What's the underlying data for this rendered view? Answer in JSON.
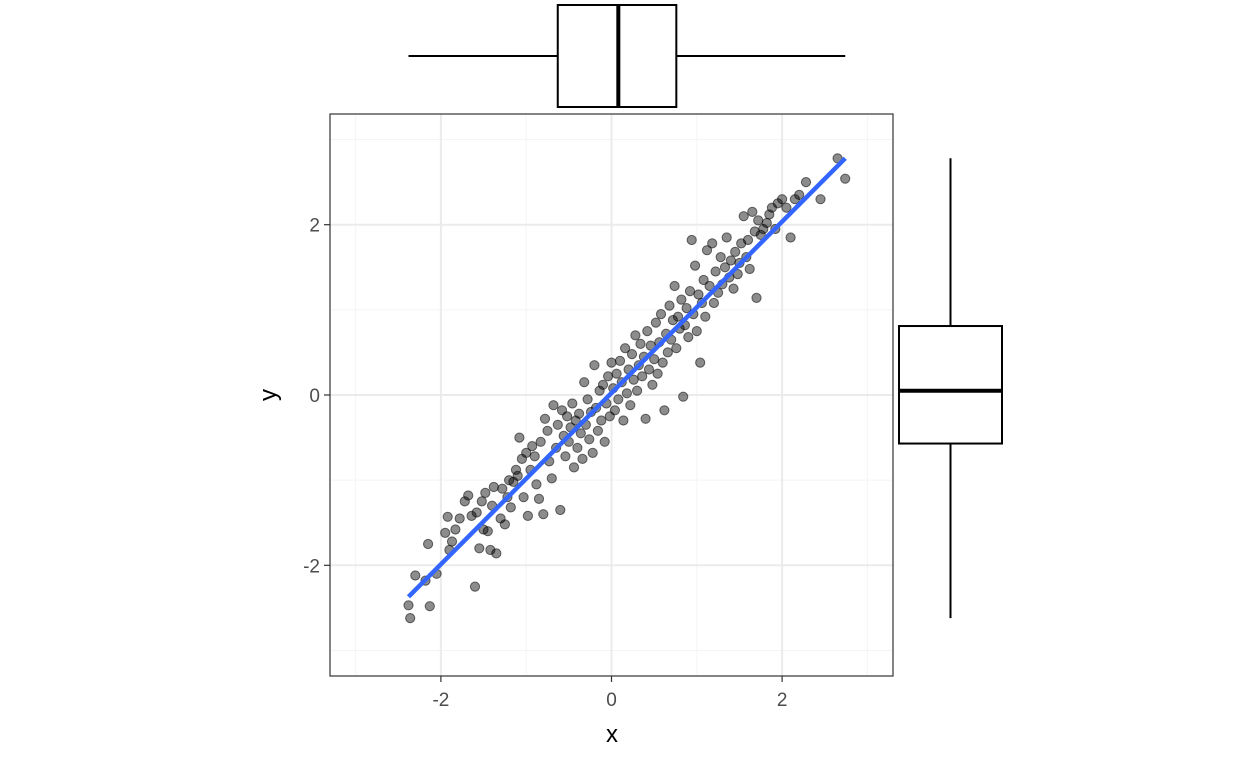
{
  "chart_data": {
    "type": "scatter",
    "title": "",
    "xlabel": "x",
    "ylabel": "y",
    "xlim": [
      -3.3,
      3.3
    ],
    "ylim": [
      -3.3,
      3.3
    ],
    "xticks": [
      -2,
      0,
      2
    ],
    "yticks": [
      -2,
      0,
      2
    ],
    "xtick_labels": [
      "-2",
      "0",
      "2"
    ],
    "ytick_labels": [
      "-2",
      "0",
      "2"
    ],
    "grid": true,
    "theme": "bw",
    "colors": {
      "points": "#000000",
      "point_alpha": 0.45,
      "fit_line": "#3366FF",
      "panel_border": "#333333",
      "grid_major": "#EBEBEB",
      "grid_minor": "#F4F4F4"
    },
    "fit_line": {
      "method": "lm",
      "x": [
        -2.38,
        2.74
      ],
      "y": [
        -2.37,
        2.78
      ]
    },
    "points": [
      [
        -2.38,
        -2.47
      ],
      [
        -2.36,
        -2.62
      ],
      [
        -2.3,
        -2.12
      ],
      [
        -2.18,
        -2.18
      ],
      [
        -2.15,
        -1.75
      ],
      [
        -2.13,
        -2.48
      ],
      [
        -2.05,
        -2.1
      ],
      [
        -1.95,
        -1.62
      ],
      [
        -1.92,
        -1.43
      ],
      [
        -1.9,
        -1.82
      ],
      [
        -1.87,
        -1.72
      ],
      [
        -1.83,
        -1.58
      ],
      [
        -1.78,
        -1.45
      ],
      [
        -1.72,
        -1.25
      ],
      [
        -1.68,
        -1.18
      ],
      [
        -1.64,
        -1.42
      ],
      [
        -1.6,
        -2.25
      ],
      [
        -1.58,
        -1.38
      ],
      [
        -1.55,
        -1.8
      ],
      [
        -1.52,
        -1.25
      ],
      [
        -1.5,
        -1.58
      ],
      [
        -1.48,
        -1.15
      ],
      [
        -1.45,
        -1.6
      ],
      [
        -1.42,
        -1.82
      ],
      [
        -1.4,
        -1.3
      ],
      [
        -1.38,
        -1.08
      ],
      [
        -1.35,
        -1.86
      ],
      [
        -1.3,
        -1.45
      ],
      [
        -1.28,
        -1.1
      ],
      [
        -1.25,
        -1.52
      ],
      [
        -1.22,
        -1.2
      ],
      [
        -1.2,
        -1.0
      ],
      [
        -1.18,
        -1.32
      ],
      [
        -1.15,
        -1.02
      ],
      [
        -1.12,
        -0.88
      ],
      [
        -1.1,
        -0.95
      ],
      [
        -1.08,
        -0.5
      ],
      [
        -1.05,
        -0.75
      ],
      [
        -1.03,
        -1.2
      ],
      [
        -1.0,
        -0.68
      ],
      [
        -0.98,
        -1.42
      ],
      [
        -0.95,
        -0.88
      ],
      [
        -0.93,
        -0.6
      ],
      [
        -0.9,
        -0.72
      ],
      [
        -0.88,
        -1.05
      ],
      [
        -0.85,
        -1.22
      ],
      [
        -0.83,
        -0.55
      ],
      [
        -0.8,
        -1.4
      ],
      [
        -0.78,
        -0.28
      ],
      [
        -0.75,
        -0.42
      ],
      [
        -0.73,
        -0.78
      ],
      [
        -0.7,
        -0.98
      ],
      [
        -0.68,
        -0.12
      ],
      [
        -0.65,
        -0.62
      ],
      [
        -0.63,
        -0.35
      ],
      [
        -0.6,
        -1.35
      ],
      [
        -0.58,
        -0.18
      ],
      [
        -0.56,
        -0.48
      ],
      [
        -0.54,
        -0.72
      ],
      [
        -0.52,
        -0.25
      ],
      [
        -0.5,
        -0.55
      ],
      [
        -0.48,
        -0.38
      ],
      [
        -0.46,
        -0.1
      ],
      [
        -0.44,
        -0.85
      ],
      [
        -0.42,
        -0.3
      ],
      [
        -0.4,
        -0.62
      ],
      [
        -0.38,
        -0.22
      ],
      [
        -0.36,
        -0.45
      ],
      [
        -0.34,
        -0.75
      ],
      [
        -0.32,
        0.15
      ],
      [
        -0.3,
        -0.35
      ],
      [
        -0.28,
        -0.05
      ],
      [
        -0.26,
        -0.52
      ],
      [
        -0.24,
        -0.2
      ],
      [
        -0.22,
        -0.68
      ],
      [
        -0.2,
        0.35
      ],
      [
        -0.18,
        -0.15
      ],
      [
        -0.16,
        -0.42
      ],
      [
        -0.14,
        0.05
      ],
      [
        -0.12,
        -0.3
      ],
      [
        -0.1,
        0.12
      ],
      [
        -0.08,
        -0.55
      ],
      [
        -0.06,
        -0.1
      ],
      [
        -0.04,
        0.22
      ],
      [
        -0.02,
        -0.25
      ],
      [
        0.0,
        0.38
      ],
      [
        0.02,
        0.08
      ],
      [
        0.04,
        -0.18
      ],
      [
        0.06,
        0.25
      ],
      [
        0.08,
        -0.05
      ],
      [
        0.1,
        0.4
      ],
      [
        0.12,
        0.15
      ],
      [
        0.14,
        -0.3
      ],
      [
        0.16,
        0.55
      ],
      [
        0.18,
        0.02
      ],
      [
        0.2,
        0.3
      ],
      [
        0.22,
        -0.12
      ],
      [
        0.24,
        0.48
      ],
      [
        0.26,
        0.18
      ],
      [
        0.28,
        0.7
      ],
      [
        0.3,
        0.05
      ],
      [
        0.32,
        0.35
      ],
      [
        0.34,
        0.6
      ],
      [
        0.36,
        0.22
      ],
      [
        0.38,
        0.45
      ],
      [
        0.4,
        -0.28
      ],
      [
        0.42,
        0.75
      ],
      [
        0.44,
        0.3
      ],
      [
        0.46,
        0.58
      ],
      [
        0.48,
        0.12
      ],
      [
        0.5,
        0.42
      ],
      [
        0.52,
        0.85
      ],
      [
        0.54,
        0.25
      ],
      [
        0.56,
        0.62
      ],
      [
        0.58,
        0.95
      ],
      [
        0.6,
        0.38
      ],
      [
        0.62,
        -0.18
      ],
      [
        0.64,
        0.72
      ],
      [
        0.66,
        0.5
      ],
      [
        0.68,
        1.05
      ],
      [
        0.7,
        0.65
      ],
      [
        0.72,
        0.88
      ],
      [
        0.74,
        1.28
      ],
      [
        0.76,
        0.55
      ],
      [
        0.78,
        0.92
      ],
      [
        0.8,
        0.78
      ],
      [
        0.82,
        1.12
      ],
      [
        0.84,
        -0.02
      ],
      [
        0.86,
        0.82
      ],
      [
        0.88,
        1.02
      ],
      [
        0.9,
        0.68
      ],
      [
        0.92,
        1.22
      ],
      [
        0.94,
        1.82
      ],
      [
        0.96,
        0.95
      ],
      [
        0.98,
        1.52
      ],
      [
        1.0,
        0.75
      ],
      [
        1.02,
        1.18
      ],
      [
        1.04,
        0.38
      ],
      [
        1.06,
        1.08
      ],
      [
        1.08,
        1.35
      ],
      [
        1.1,
        0.92
      ],
      [
        1.12,
        1.7
      ],
      [
        1.15,
        1.28
      ],
      [
        1.18,
        1.78
      ],
      [
        1.2,
        1.08
      ],
      [
        1.22,
        1.45
      ],
      [
        1.25,
        1.2
      ],
      [
        1.28,
        1.62
      ],
      [
        1.3,
        1.3
      ],
      [
        1.33,
        1.5
      ],
      [
        1.35,
        1.85
      ],
      [
        1.38,
        1.38
      ],
      [
        1.4,
        1.58
      ],
      [
        1.43,
        1.25
      ],
      [
        1.45,
        1.68
      ],
      [
        1.48,
        1.42
      ],
      [
        1.5,
        1.55
      ],
      [
        1.52,
        1.78
      ],
      [
        1.55,
        2.1
      ],
      [
        1.58,
        1.62
      ],
      [
        1.6,
        1.82
      ],
      [
        1.62,
        1.48
      ],
      [
        1.65,
        2.15
      ],
      [
        1.68,
        1.92
      ],
      [
        1.7,
        1.14
      ],
      [
        1.72,
        2.05
      ],
      [
        1.75,
        1.88
      ],
      [
        1.78,
        1.95
      ],
      [
        1.82,
        2.02
      ],
      [
        1.85,
        2.12
      ],
      [
        1.88,
        2.2
      ],
      [
        1.92,
        1.95
      ],
      [
        1.95,
        2.25
      ],
      [
        2.0,
        2.3
      ],
      [
        2.05,
        2.2
      ],
      [
        2.1,
        1.85
      ],
      [
        2.15,
        2.3
      ],
      [
        2.2,
        2.35
      ],
      [
        2.28,
        2.5
      ],
      [
        2.45,
        2.3
      ],
      [
        2.65,
        2.78
      ],
      [
        2.74,
        2.54
      ]
    ],
    "boxplot_x": {
      "min": -2.38,
      "q1": -0.63,
      "median": 0.08,
      "q3": 0.76,
      "max": 2.74
    },
    "boxplot_y": {
      "min": -2.62,
      "q1": -0.57,
      "median": 0.05,
      "q3": 0.81,
      "max": 2.78
    }
  }
}
